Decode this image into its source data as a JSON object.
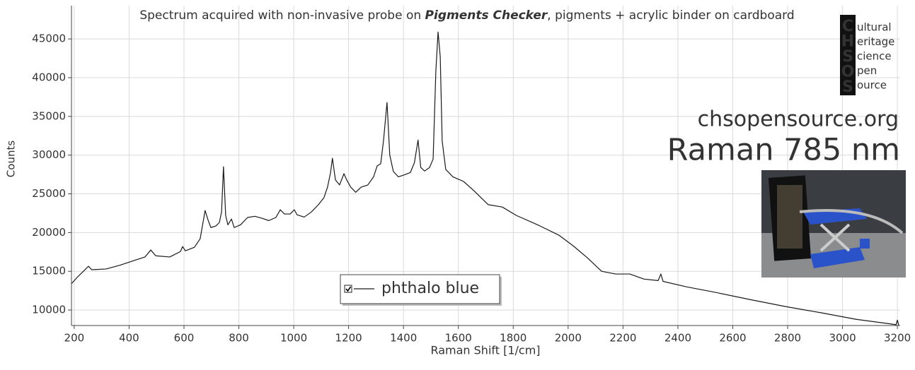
{
  "chart_data": {
    "type": "line",
    "title_prefix": "Spectrum acquired with non-invasive probe on ",
    "title_emphasis": "Pigments Checker",
    "title_suffix": ", pigments + acrylic binder on cardboard",
    "xlabel": "Raman Shift [1/cm]",
    "ylabel": "Counts",
    "x": [
      190,
      213,
      239,
      252,
      264,
      316,
      368,
      419,
      458,
      479,
      497,
      548,
      587,
      595,
      605,
      638,
      659,
      677,
      688,
      698,
      716,
      729,
      737,
      744,
      752,
      760,
      773,
      783,
      806,
      832,
      858,
      884,
      909,
      935,
      951,
      966,
      987,
      1002,
      1012,
      1038,
      1064,
      1090,
      1110,
      1123,
      1134,
      1141,
      1152,
      1167,
      1183,
      1193,
      1208,
      1226,
      1245,
      1270,
      1291,
      1304,
      1317,
      1327,
      1340,
      1350,
      1363,
      1381,
      1399,
      1425,
      1440,
      1453,
      1463,
      1477,
      1495,
      1508,
      1518,
      1526,
      1534,
      1541,
      1554,
      1580,
      1619,
      1657,
      1709,
      1760,
      1812,
      1889,
      1967,
      2018,
      2070,
      2122,
      2173,
      2225,
      2276,
      2328,
      2338,
      2346,
      2431,
      2534,
      2663,
      2792,
      2921,
      3050,
      3166,
      3195,
      3200,
      3205
    ],
    "series": [
      {
        "name": "phthalo blue",
        "color": "#1a1a1a",
        "values": [
          13400,
          14300,
          15200,
          15650,
          15200,
          15300,
          15800,
          16400,
          16850,
          17750,
          17000,
          16850,
          17550,
          18200,
          17650,
          18100,
          19200,
          22850,
          21600,
          20650,
          20850,
          21300,
          22670,
          28500,
          22200,
          21000,
          21750,
          20650,
          21000,
          21950,
          22100,
          21850,
          21550,
          21950,
          22950,
          22400,
          22400,
          22950,
          22300,
          22000,
          22650,
          23600,
          24500,
          25850,
          27700,
          29600,
          26800,
          26150,
          27600,
          26800,
          25850,
          25200,
          25850,
          26150,
          27200,
          28600,
          28900,
          31800,
          36800,
          30000,
          27900,
          27200,
          27400,
          27750,
          29050,
          31950,
          28400,
          27950,
          28400,
          29500,
          40900,
          45900,
          42700,
          31800,
          28150,
          27200,
          26600,
          25400,
          23600,
          23300,
          22200,
          21000,
          19650,
          18300,
          16750,
          15000,
          14650,
          14650,
          14000,
          13800,
          14650,
          13700,
          13000,
          12300,
          11350,
          10450,
          9650,
          8800,
          8250,
          8100,
          8700,
          8000
        ]
      }
    ],
    "xlim": [
      190,
      3210
    ],
    "ylim": [
      8000,
      49300
    ],
    "xticks": [
      200,
      400,
      600,
      800,
      1000,
      1200,
      1400,
      1600,
      1800,
      2000,
      2200,
      2400,
      2600,
      2800,
      3000,
      3200
    ],
    "yticks": [
      10000,
      15000,
      20000,
      25000,
      30000,
      35000,
      40000,
      45000
    ],
    "grid": true,
    "legend": "bottom-center"
  },
  "branding": {
    "logo_letters": [
      "C",
      "H",
      "S",
      "O",
      "S"
    ],
    "logo_words": [
      "ultural",
      "eritage",
      "cience",
      "pen",
      "ource"
    ],
    "website": "chsopensource.org",
    "technique": "Raman 785 nm"
  }
}
